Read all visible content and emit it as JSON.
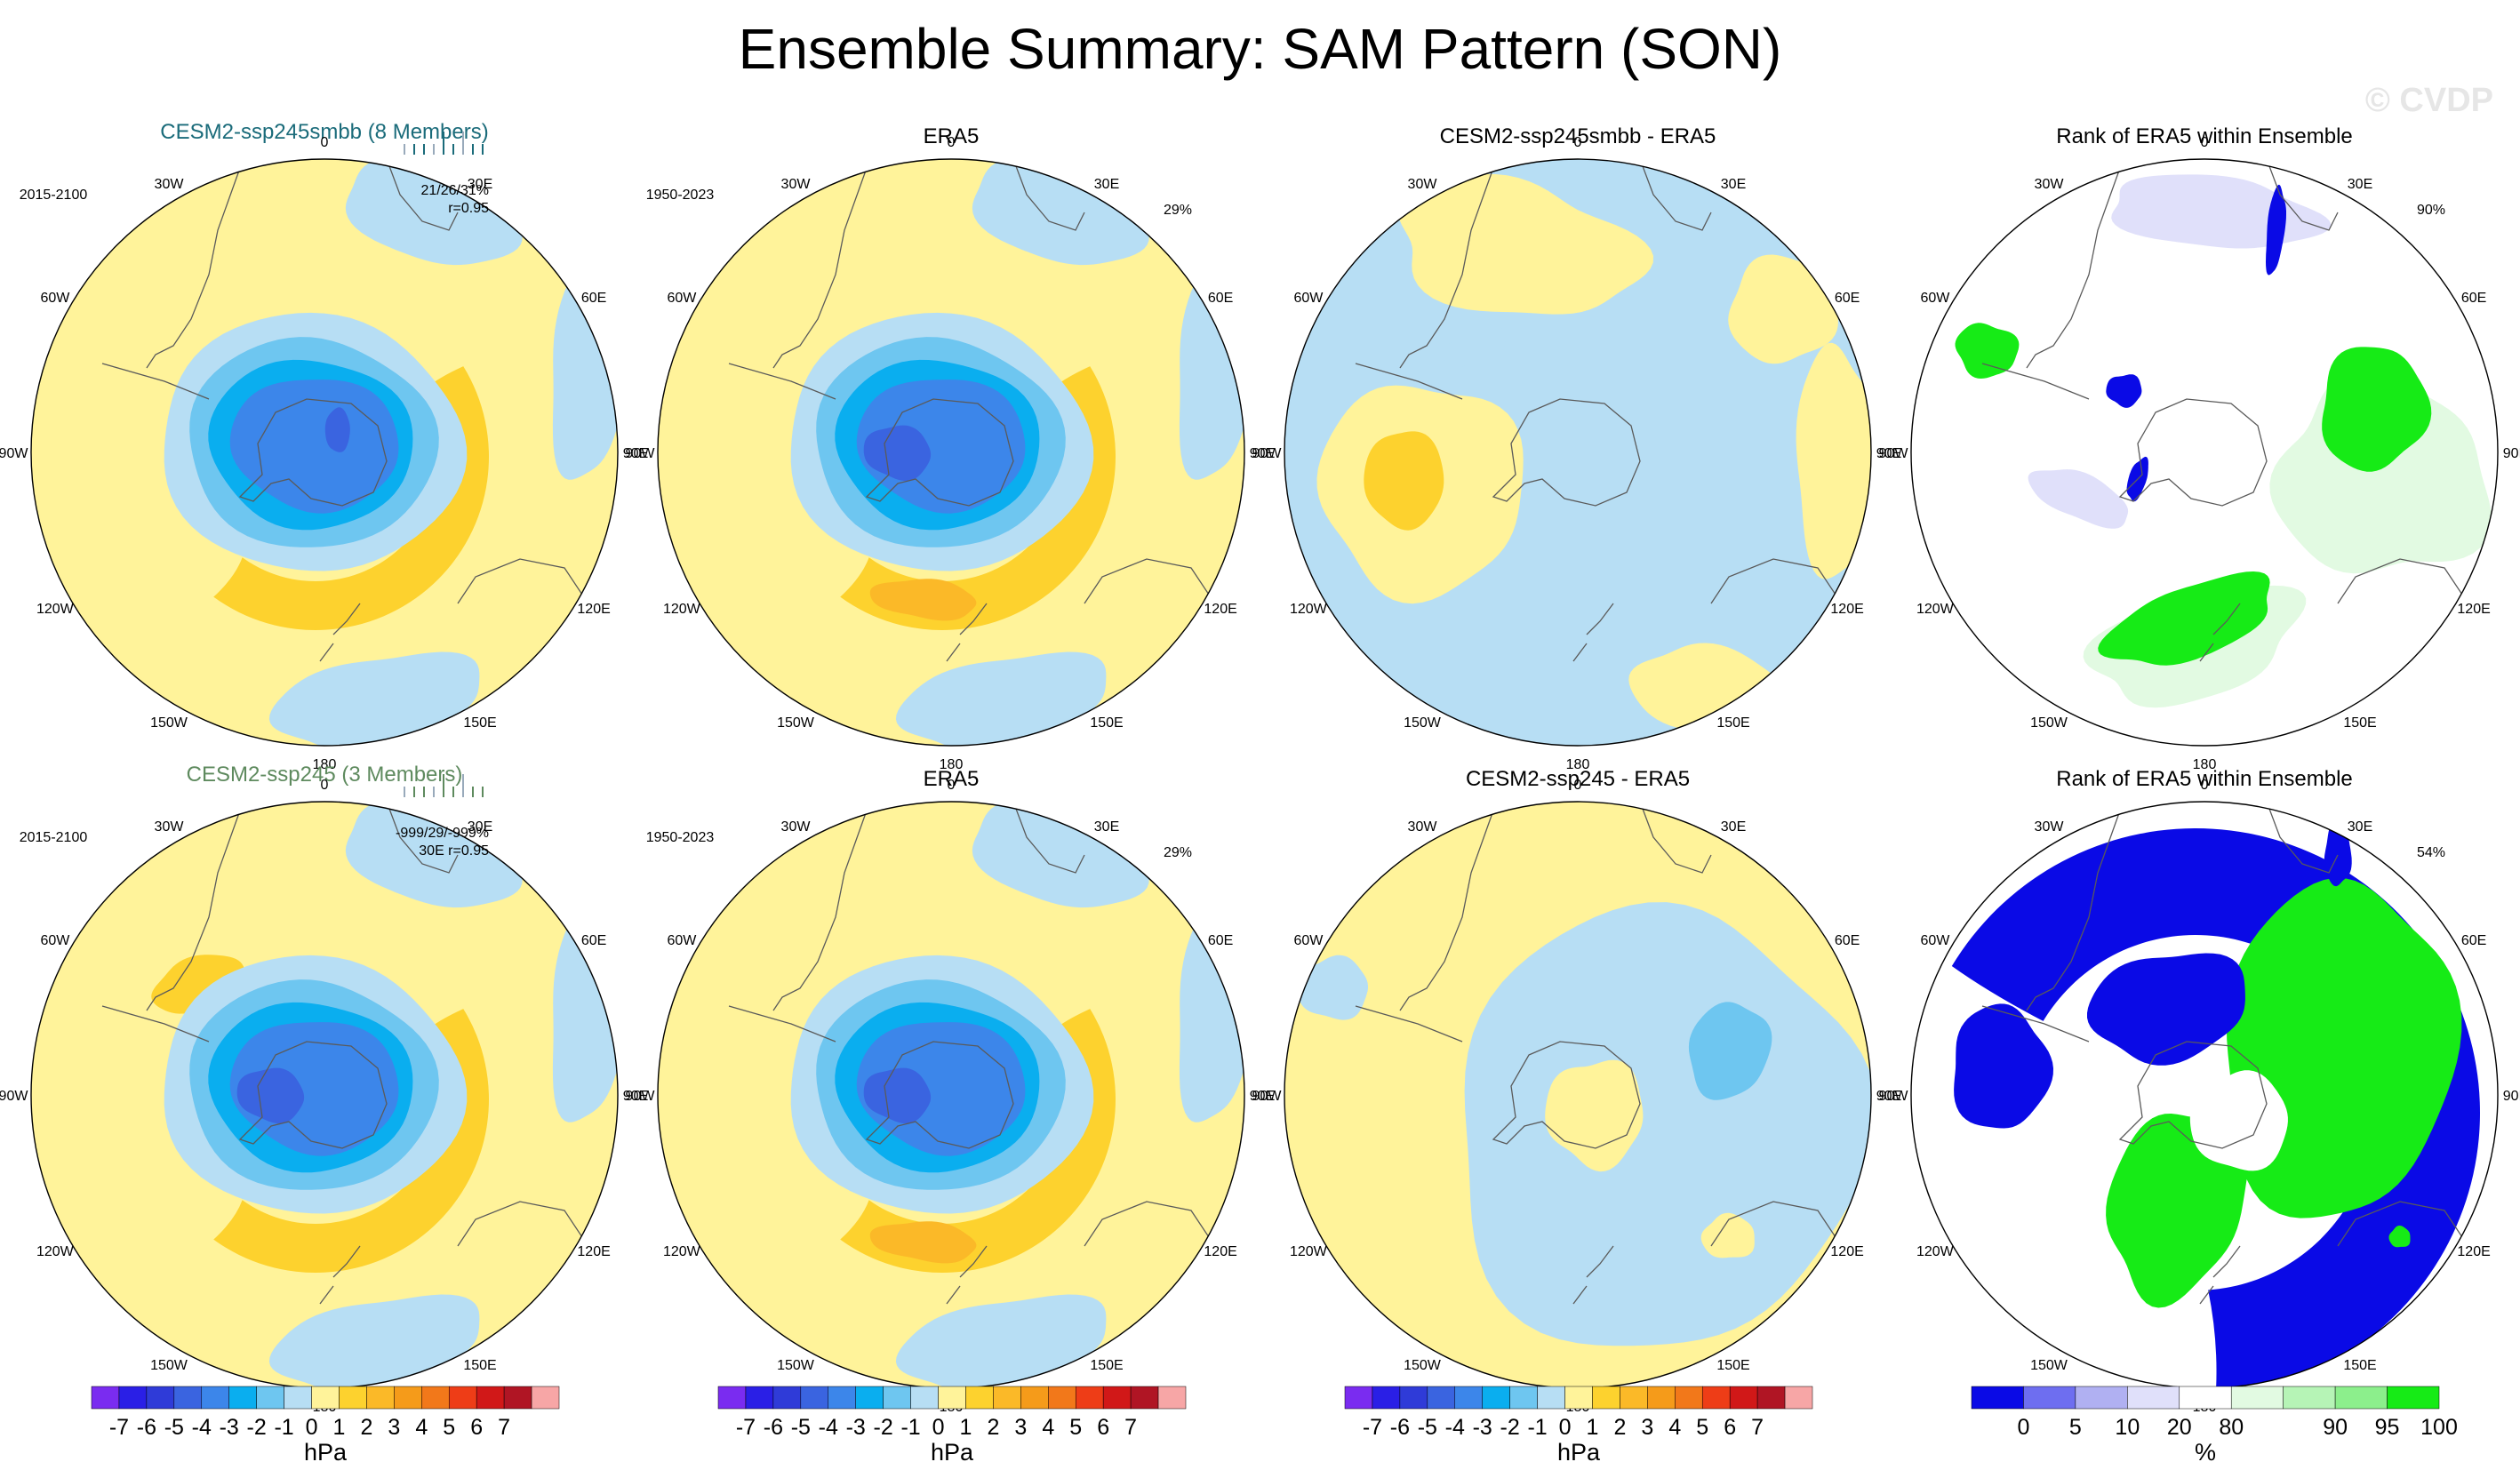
{
  "title": "Ensemble Summary: SAM Pattern (SON)",
  "watermark": "© CVDP",
  "lon_labels": [
    "0",
    "30E",
    "60E",
    "90E",
    "120E",
    "150E",
    "180",
    "150W",
    "120W",
    "90W",
    "60W",
    "30W"
  ],
  "colors": {
    "model1": "#1a6b7a",
    "model2": "#5e8a5e",
    "land_outline": "#5a5a5a",
    "neutral_pos": "#fff39a",
    "neutral_neg": "#b7def4"
  },
  "panels": [
    {
      "id": "p1",
      "title": "CESM2-ssp245smbb (8 Members)",
      "title_color": "model1",
      "period": "2015-2100",
      "stat": "21/26/31%",
      "stat2": "r=0.95",
      "kind": "sam"
    },
    {
      "id": "p2",
      "title": "ERA5",
      "period": "1950-2023",
      "stat": "29%",
      "kind": "sam_obs"
    },
    {
      "id": "p3",
      "title": "CESM2-ssp245smbb - ERA5",
      "kind": "diff1"
    },
    {
      "id": "p4",
      "title": "Rank of ERA5 within Ensemble",
      "stat": "90%",
      "kind": "rank1"
    },
    {
      "id": "p5",
      "title": "CESM2-ssp245 (3 Members)",
      "title_color": "model2",
      "period": "2015-2100",
      "stat": "-999/29/-999%",
      "stat2": "30E r=0.95",
      "kind": "sam2"
    },
    {
      "id": "p6",
      "title": "ERA5",
      "period": "1950-2023",
      "stat": "29%",
      "kind": "sam_obs"
    },
    {
      "id": "p7",
      "title": "CESM2-ssp245 - ERA5",
      "kind": "diff2"
    },
    {
      "id": "p8",
      "title": "Rank of ERA5 within Ensemble",
      "stat": "54%",
      "kind": "rank2"
    }
  ],
  "chart_data": {
    "type": "heatmap",
    "projection": "south polar stereographic",
    "variable": "SAM pattern (SON)",
    "pressure_colorbar": {
      "unit": "hPa",
      "levels": [
        -7,
        -6,
        -5,
        -4,
        -3,
        -2,
        -1,
        0,
        1,
        2,
        3,
        4,
        5,
        6,
        7
      ],
      "colors": [
        "#7a2cf0",
        "#2a1fe6",
        "#2f3bd8",
        "#3a64e0",
        "#3c86ea",
        "#0aaeef",
        "#6ec6f0",
        "#b7def4",
        "#fff39a",
        "#fdd22e",
        "#fbb928",
        "#f59b1a",
        "#f2781a",
        "#ee3d17",
        "#d11818",
        "#b01524",
        "#f7a6a6"
      ]
    },
    "rank_colorbar": {
      "unit": "%",
      "levels": [
        0,
        5,
        10,
        20,
        80,
        90,
        95,
        100
      ],
      "colors": [
        "#0a0ae6",
        "#6e6ef0",
        "#b0b0f2",
        "#e0e0fa",
        "#ffffff",
        "#e2fae2",
        "#b6f4b6",
        "#8cef8c",
        "#16eb16"
      ]
    }
  }
}
